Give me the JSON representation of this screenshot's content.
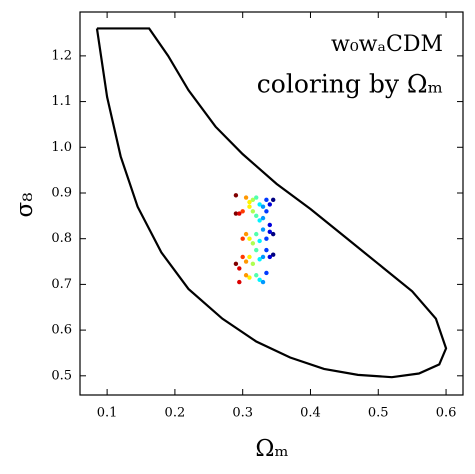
{
  "chart_data": {
    "type": "scatter",
    "annotations": [
      "w₀wₐCDM",
      "coloring by Ωₘ"
    ],
    "xlabel": "Ωₘ",
    "ylabel": "σ₈",
    "xlim": [
      0.06,
      0.625
    ],
    "ylim": [
      0.458,
      1.296
    ],
    "xticks": [
      0.1,
      0.2,
      0.3,
      0.4,
      0.5,
      0.6
    ],
    "yticks": [
      0.5,
      0.6,
      0.7,
      0.8,
      0.9,
      {
        "value": 1.0,
        "label": "1.0"
      },
      1.1,
      1.2
    ],
    "series": [
      {
        "type": "line",
        "color": "#000000",
        "x": [
          0.085,
          0.162,
          0.19,
          0.22,
          0.26,
          0.3,
          0.35,
          0.4,
          0.45,
          0.5,
          0.55,
          0.585,
          0.6,
          0.59,
          0.56,
          0.52,
          0.47,
          0.42,
          0.37,
          0.32,
          0.27,
          0.22,
          0.18,
          0.145,
          0.12,
          0.1,
          0.085
        ],
        "y": [
          1.26,
          1.26,
          1.2,
          1.125,
          1.045,
          0.985,
          0.92,
          0.865,
          0.805,
          0.745,
          0.685,
          0.625,
          0.56,
          0.525,
          0.505,
          0.497,
          0.502,
          0.515,
          0.54,
          0.575,
          0.625,
          0.69,
          0.77,
          0.87,
          0.98,
          1.11,
          1.26
        ]
      },
      {
        "type": "scatter",
        "colormap": "jet",
        "color_by": "x",
        "clim": [
          0.29,
          0.345
        ],
        "x": [
          0.29,
          0.29,
          0.295,
          0.3,
          0.3,
          0.305,
          0.3,
          0.305,
          0.29,
          0.295,
          0.295,
          0.305,
          0.31,
          0.31,
          0.315,
          0.315,
          0.32,
          0.32,
          0.325,
          0.325,
          0.33,
          0.33,
          0.335,
          0.335,
          0.34,
          0.345,
          0.34,
          0.31,
          0.315,
          0.32,
          0.325,
          0.33,
          0.335,
          0.34,
          0.345,
          0.31,
          0.315,
          0.32,
          0.325,
          0.33,
          0.335,
          0.34,
          0.345,
          0.31,
          0.32,
          0.325,
          0.33,
          0.335,
          0.305
        ],
        "y": [
          0.895,
          0.855,
          0.855,
          0.86,
          0.8,
          0.81,
          0.76,
          0.75,
          0.745,
          0.735,
          0.705,
          0.89,
          0.88,
          0.87,
          0.885,
          0.86,
          0.89,
          0.85,
          0.875,
          0.84,
          0.87,
          0.845,
          0.885,
          0.86,
          0.875,
          0.885,
          0.83,
          0.8,
          0.79,
          0.81,
          0.795,
          0.82,
          0.8,
          0.815,
          0.81,
          0.76,
          0.745,
          0.775,
          0.755,
          0.76,
          0.775,
          0.76,
          0.765,
          0.715,
          0.72,
          0.71,
          0.705,
          0.725,
          0.72
        ]
      }
    ]
  }
}
